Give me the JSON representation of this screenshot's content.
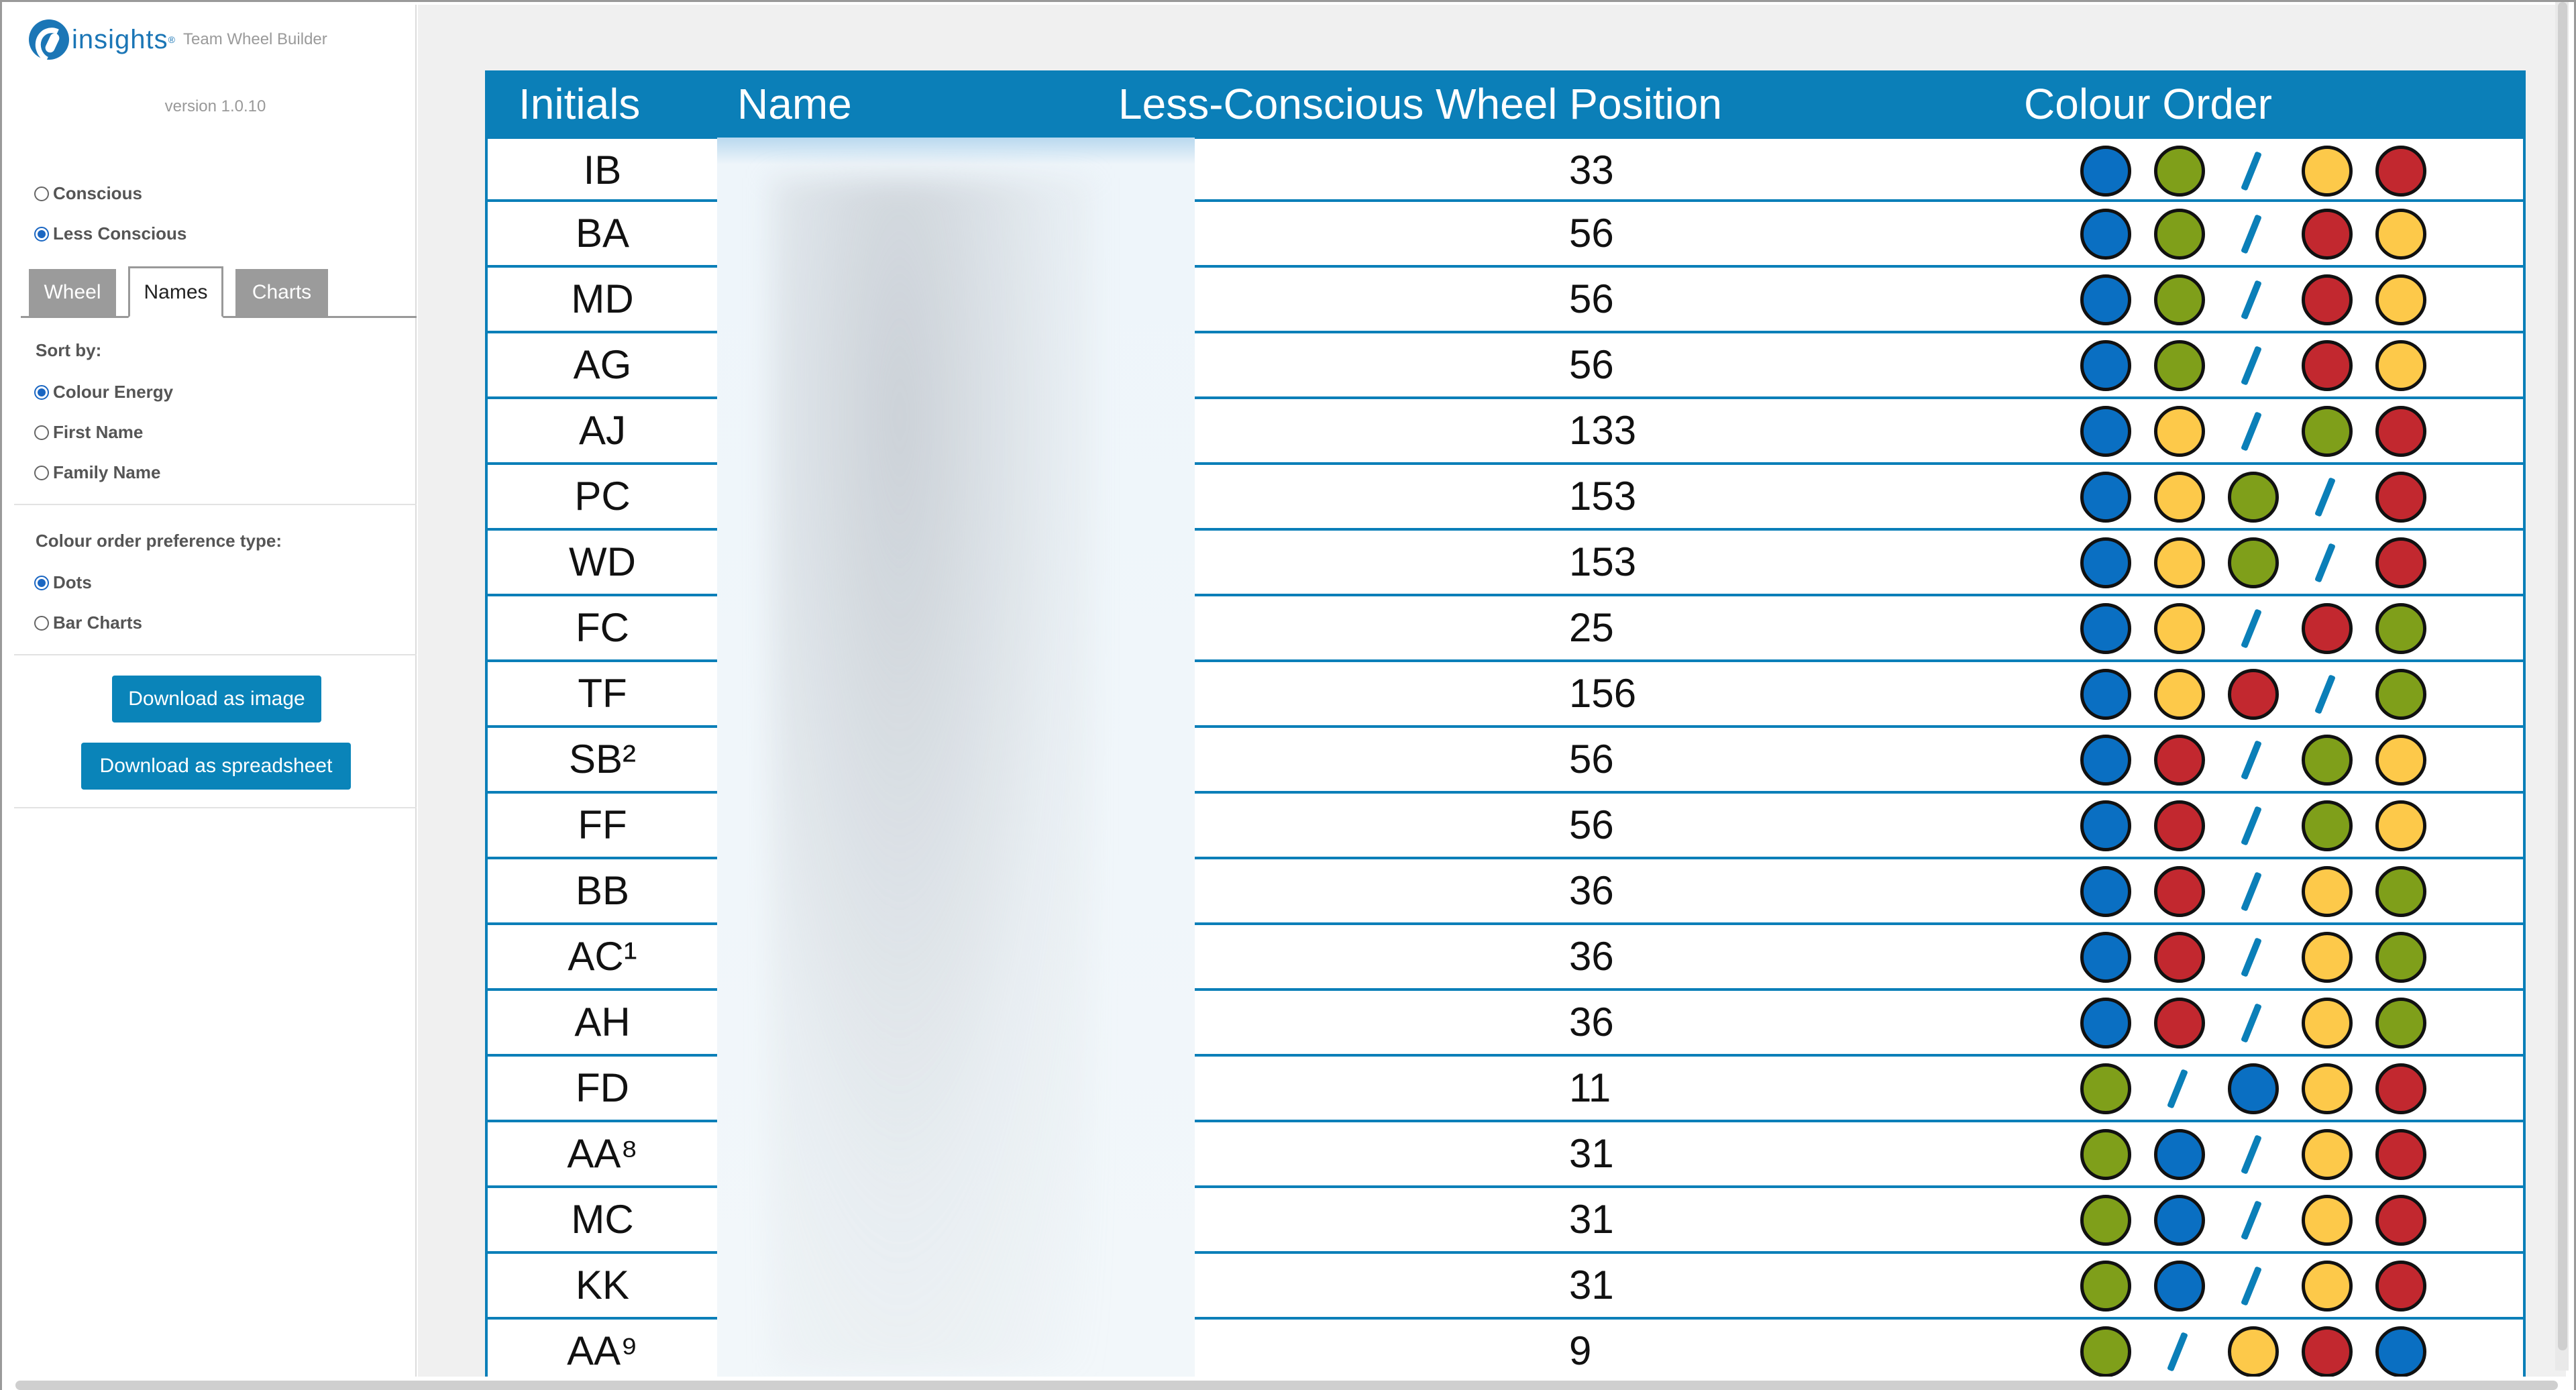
{
  "sidebar": {
    "logo_text": "insights",
    "logo_tm": "®",
    "app_name": "Team Wheel Builder",
    "version": "version 1.0.10",
    "mode": {
      "conscious": "Conscious",
      "less_conscious": "Less Conscious",
      "selected": "less_conscious"
    },
    "tabs": {
      "wheel": "Wheel",
      "names": "Names",
      "charts": "Charts",
      "active": "names"
    },
    "sort": {
      "label": "Sort by:",
      "colour_energy": "Colour Energy",
      "first_name": "First Name",
      "family_name": "Family Name",
      "selected": "colour_energy"
    },
    "preference": {
      "label": "Colour order preference type:",
      "dots": "Dots",
      "bar_charts": "Bar Charts",
      "selected": "dots"
    },
    "download_image": "Download as image",
    "download_spreadsheet": "Download as spreadsheet"
  },
  "table": {
    "headers": {
      "initials": "Initials",
      "name": "Name",
      "position": "Less-Conscious Wheel Position",
      "colour_order": "Colour Order"
    },
    "colours": {
      "blue": "#0a6fc2",
      "green": "#7f9f1a",
      "yellow": "#fdc94a",
      "red": "#c2282f",
      "slash": "#0b7fb8"
    },
    "rows": [
      {
        "initials": "IB",
        "position": "33",
        "order": [
          "blue",
          "green",
          "/",
          "yellow",
          "red"
        ]
      },
      {
        "initials": "BA",
        "position": "56",
        "order": [
          "blue",
          "green",
          "/",
          "red",
          "yellow"
        ]
      },
      {
        "initials": "MD",
        "position": "56",
        "order": [
          "blue",
          "green",
          "/",
          "red",
          "yellow"
        ]
      },
      {
        "initials": "AG",
        "position": "56",
        "order": [
          "blue",
          "green",
          "/",
          "red",
          "yellow"
        ]
      },
      {
        "initials": "AJ",
        "position": "133",
        "order": [
          "blue",
          "yellow",
          "/",
          "green",
          "red"
        ]
      },
      {
        "initials": "PC",
        "position": "153",
        "order": [
          "blue",
          "yellow",
          "green",
          "/",
          "red"
        ]
      },
      {
        "initials": "WD",
        "position": "153",
        "order": [
          "blue",
          "yellow",
          "green",
          "/",
          "red"
        ]
      },
      {
        "initials": "FC",
        "position": "25",
        "order": [
          "blue",
          "yellow",
          "/",
          "red",
          "green"
        ]
      },
      {
        "initials": "TF",
        "position": "156",
        "order": [
          "blue",
          "yellow",
          "red",
          "/",
          "green"
        ]
      },
      {
        "initials": "SB²",
        "position": "56",
        "order": [
          "blue",
          "red",
          "/",
          "green",
          "yellow"
        ]
      },
      {
        "initials": "FF",
        "position": "56",
        "order": [
          "blue",
          "red",
          "/",
          "green",
          "yellow"
        ]
      },
      {
        "initials": "BB",
        "position": "36",
        "order": [
          "blue",
          "red",
          "/",
          "yellow",
          "green"
        ]
      },
      {
        "initials": "AC¹",
        "position": "36",
        "order": [
          "blue",
          "red",
          "/",
          "yellow",
          "green"
        ]
      },
      {
        "initials": "AH",
        "position": "36",
        "order": [
          "blue",
          "red",
          "/",
          "yellow",
          "green"
        ]
      },
      {
        "initials": "FD",
        "position": "11",
        "order": [
          "green",
          "/",
          "blue",
          "yellow",
          "red"
        ]
      },
      {
        "initials": "AA⁸",
        "position": "31",
        "order": [
          "green",
          "blue",
          "/",
          "yellow",
          "red"
        ]
      },
      {
        "initials": "MC",
        "position": "31",
        "order": [
          "green",
          "blue",
          "/",
          "yellow",
          "red"
        ]
      },
      {
        "initials": "KK",
        "position": "31",
        "order": [
          "green",
          "blue",
          "/",
          "yellow",
          "red"
        ]
      },
      {
        "initials": "AA⁹",
        "position": "9",
        "order": [
          "green",
          "/",
          "yellow",
          "red",
          "blue"
        ]
      }
    ]
  }
}
